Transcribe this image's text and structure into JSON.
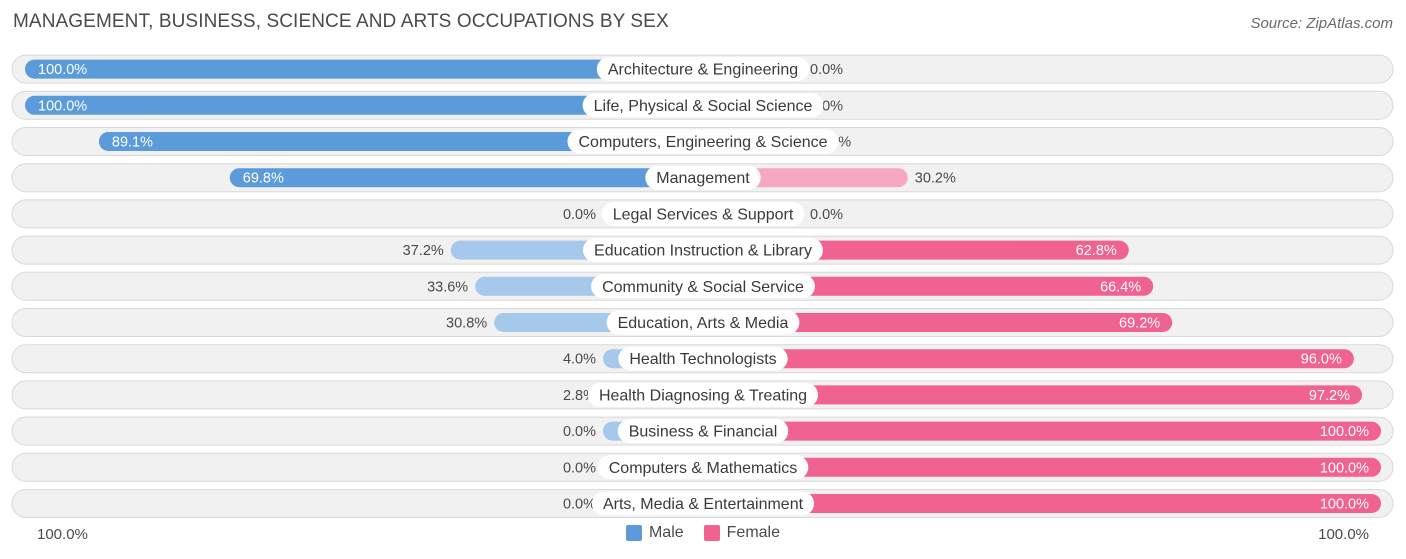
{
  "title": "MANAGEMENT, BUSINESS, SCIENCE AND ARTS OCCUPATIONS BY SEX",
  "source": "Source: ZipAtlas.com",
  "axis": {
    "left_label": "100.0%",
    "right_label": "100.0%"
  },
  "legend": {
    "male_label": "Male",
    "female_label": "Female"
  },
  "colors": {
    "male_strong": "#5b9bd9",
    "male_light": "#a6c8ea",
    "female_strong": "#f0628f",
    "female_light": "#f5a8c0",
    "row_bg": "#f1f1f1",
    "row_border": "#d9d9d9"
  },
  "chart_data": {
    "type": "bar",
    "orientation": "horizontal-diverging",
    "categories": [
      "Architecture & Engineering",
      "Life, Physical & Social Science",
      "Computers, Engineering & Science",
      "Management",
      "Legal Services & Support",
      "Education Instruction & Library",
      "Community & Social Service",
      "Education, Arts & Media",
      "Health Technologists",
      "Health Diagnosing & Treating",
      "Business & Financial",
      "Computers & Mathematics",
      "Arts, Media & Entertainment"
    ],
    "series": [
      {
        "name": "Male",
        "values": [
          100.0,
          100.0,
          89.1,
          69.8,
          0.0,
          37.2,
          33.6,
          30.8,
          4.0,
          2.8,
          0.0,
          0.0,
          0.0
        ]
      },
      {
        "name": "Female",
        "values": [
          0.0,
          0.0,
          10.9,
          30.2,
          0.0,
          62.8,
          66.4,
          69.2,
          96.0,
          97.2,
          100.0,
          100.0,
          100.0
        ]
      }
    ],
    "value_labels": {
      "male": [
        "100.0%",
        "100.0%",
        "89.1%",
        "69.8%",
        "0.0%",
        "37.2%",
        "33.6%",
        "30.8%",
        "4.0%",
        "2.8%",
        "0.0%",
        "0.0%",
        "0.0%"
      ],
      "female": [
        "0.0%",
        "0.0%",
        "10.9%",
        "30.2%",
        "0.0%",
        "62.8%",
        "66.4%",
        "69.2%",
        "96.0%",
        "97.2%",
        "100.0%",
        "100.0%",
        "100.0%"
      ]
    },
    "xlim": [
      0,
      100
    ],
    "legend_position": "bottom-center"
  }
}
